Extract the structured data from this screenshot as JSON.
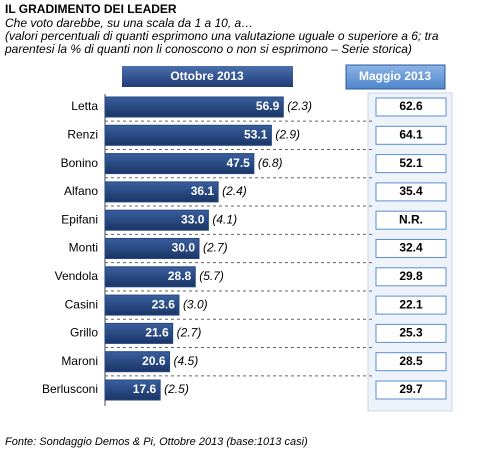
{
  "chart_data": {
    "type": "bar",
    "orientation": "horizontal",
    "title": "IL GRADIMENTO DEI LEADER",
    "subtitle": "Che voto darebbe, su una scala da 1 a 10, a…",
    "note": [
      "(valori percentuali di quanti esprimono una valutazione uguale o superiore a 6; tra",
      "parentesi la % di quanti non li conoscono o non si esprimono – Serie storica)"
    ],
    "categories": [
      "Letta",
      "Renzi",
      "Bonino",
      "Alfano",
      "Epifani",
      "Monti",
      "Vendola",
      "Casini",
      "Grillo",
      "Maroni",
      "Berlusconi"
    ],
    "series": [
      {
        "name": "Ottobre 2013",
        "color": "#23467f",
        "values": [
          56.9,
          53.1,
          47.5,
          36.1,
          33.0,
          30.0,
          28.8,
          23.6,
          21.6,
          20.6,
          17.6
        ],
        "value_labels": [
          "56.9",
          "53.1",
          "47.5",
          "36.1",
          "33.0",
          "30.0",
          "28.8",
          "23.6",
          "21.6",
          "20.6",
          "17.6"
        ]
      },
      {
        "name": "Maggio 2013",
        "color": "#5b8fd0",
        "values": [
          62.6,
          64.1,
          52.1,
          35.4,
          null,
          32.4,
          29.8,
          22.1,
          25.3,
          28.5,
          29.7
        ],
        "value_labels": [
          "62.6",
          "64.1",
          "52.1",
          "35.4",
          "N.R.",
          "32.4",
          "29.8",
          "22.1",
          "25.3",
          "28.5",
          "29.7"
        ]
      }
    ],
    "non_esprimono": {
      "values": [
        2.3,
        2.9,
        6.8,
        2.4,
        4.1,
        2.7,
        5.7,
        3.0,
        2.7,
        4.5,
        2.5
      ],
      "value_labels": [
        "(2.3)",
        "(2.9)",
        "(6.8)",
        "(2.4)",
        "(4.1)",
        "(2.7)",
        "(5.7)",
        "(3.0)",
        "(2.7)",
        "(4.5)",
        "(2.5)"
      ]
    },
    "xlim": [
      0,
      60
    ],
    "source": "Fonte: Sondaggio Demos & Pi, Ottobre 2013 (base:1013 casi)"
  }
}
